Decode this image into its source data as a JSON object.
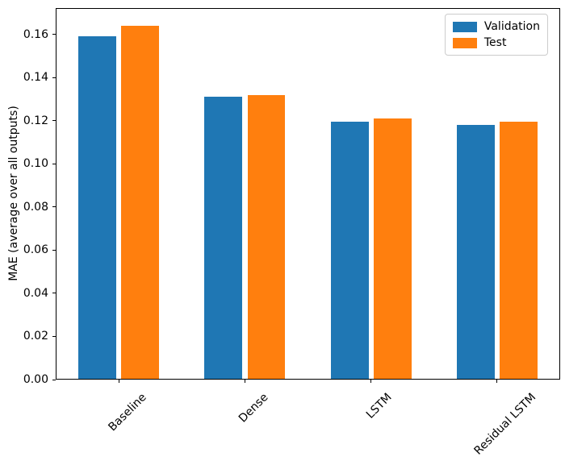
{
  "figure": {
    "background": "#ffffff",
    "axis_color": "#000000"
  },
  "chart_data": {
    "type": "bar",
    "title": "",
    "xlabel": "",
    "ylabel": "MAE (average over all outputs)",
    "categories": [
      "Baseline",
      "Dense",
      "LSTM",
      "Residual LSTM"
    ],
    "series": [
      {
        "name": "Validation",
        "color": "#1f77b4",
        "values": [
          0.159,
          0.131,
          0.1195,
          0.118
        ]
      },
      {
        "name": "Test",
        "color": "#ff7f0e",
        "values": [
          0.164,
          0.132,
          0.121,
          0.1195
        ]
      }
    ],
    "ylim": [
      0,
      0.1722
    ],
    "yticks": [
      0.0,
      0.02,
      0.04,
      0.06,
      0.08,
      0.1,
      0.12,
      0.14,
      0.16
    ],
    "ytick_decimals": 2,
    "xtick_rotation_deg": 45,
    "grid": false,
    "bar_width_fraction": 0.3,
    "bar_offset_fraction": 0.17,
    "legend": {
      "position": "upper right",
      "entries": [
        "Validation",
        "Test"
      ],
      "border_color": "#cccccc"
    }
  }
}
